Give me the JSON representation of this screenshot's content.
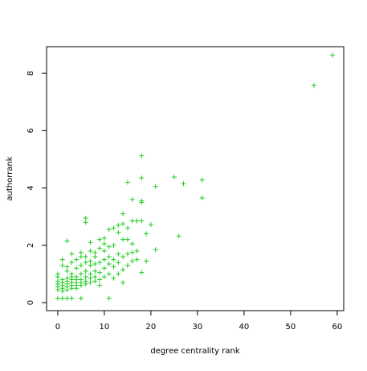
{
  "chart_data": {
    "type": "scatter",
    "xlabel": "degree centrality rank",
    "ylabel": "authorrank",
    "color": "#22cc22",
    "xlim": [
      -2.4,
      61.4
    ],
    "ylim": [
      -0.28,
      8.93
    ],
    "xticks": [
      0,
      10,
      20,
      30,
      40,
      50,
      60
    ],
    "yticks": [
      0,
      2,
      4,
      6,
      8
    ],
    "x": [
      0,
      0,
      0,
      0,
      0,
      0,
      0,
      1,
      1,
      1,
      1,
      1,
      1,
      1,
      1,
      2,
      2,
      2,
      2,
      2,
      2,
      2,
      2,
      2,
      3,
      3,
      3,
      3,
      3,
      3,
      3,
      3,
      3,
      4,
      4,
      4,
      4,
      4,
      4,
      4,
      5,
      5,
      5,
      5,
      5,
      5,
      5,
      5,
      6,
      6,
      6,
      6,
      6,
      6,
      6,
      6,
      7,
      7,
      7,
      7,
      7,
      7,
      7,
      8,
      8,
      8,
      8,
      8,
      8,
      9,
      9,
      9,
      9,
      9,
      9,
      10,
      10,
      10,
      10,
      10,
      10,
      11,
      11,
      11,
      11,
      11,
      11,
      12,
      12,
      12,
      12,
      12,
      13,
      13,
      13,
      13,
      13,
      14,
      14,
      14,
      14,
      14,
      14,
      15,
      15,
      15,
      15,
      15,
      16,
      16,
      16,
      16,
      16,
      17,
      17,
      17,
      18,
      18,
      18,
      18,
      18,
      18,
      19,
      19,
      20,
      21,
      21,
      25,
      26,
      27,
      31,
      31,
      55,
      59
    ],
    "y": [
      0.15,
      0.45,
      0.55,
      0.65,
      0.75,
      0.9,
      1.0,
      0.15,
      0.4,
      0.5,
      0.6,
      0.7,
      0.8,
      1.3,
      1.5,
      0.15,
      0.45,
      0.55,
      0.65,
      0.75,
      0.85,
      1.1,
      1.25,
      2.15,
      0.15,
      0.5,
      0.6,
      0.7,
      0.8,
      0.9,
      1.0,
      1.4,
      1.7,
      0.5,
      0.6,
      0.7,
      0.8,
      0.9,
      1.2,
      1.5,
      0.15,
      0.6,
      0.7,
      0.8,
      1.0,
      1.3,
      1.6,
      1.75,
      0.65,
      0.75,
      0.9,
      1.1,
      1.4,
      1.6,
      2.8,
      2.95,
      0.7,
      0.85,
      1.0,
      1.3,
      1.45,
      1.8,
      2.1,
      0.75,
      0.9,
      1.1,
      1.35,
      1.6,
      1.75,
      0.6,
      0.8,
      1.05,
      1.4,
      1.9,
      2.2,
      0.9,
      1.2,
      1.5,
      1.8,
      2.05,
      2.25,
      0.15,
      1.0,
      1.35,
      1.6,
      1.95,
      2.55,
      0.85,
      1.25,
      1.5,
      2.0,
      2.6,
      1.0,
      1.4,
      1.7,
      2.45,
      2.7,
      0.7,
      1.15,
      1.6,
      2.2,
      2.75,
      3.1,
      1.3,
      1.7,
      2.2,
      2.6,
      4.2,
      1.45,
      1.75,
      2.05,
      2.85,
      3.6,
      1.8,
      2.85,
      1.5,
      1.05,
      3.5,
      3.55,
      4.35,
      5.12,
      2.85,
      1.45,
      2.4,
      2.72,
      1.85,
      4.05,
      4.38,
      2.32,
      4.15,
      4.28,
      3.65,
      7.58,
      8.63
    ]
  }
}
